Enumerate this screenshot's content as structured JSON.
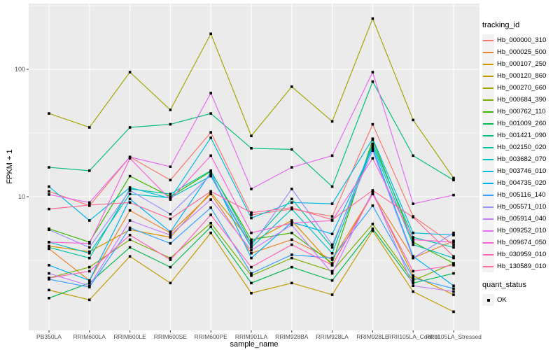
{
  "figure": {
    "background": "#FFFFFF",
    "panel_background": "#EBEBEB",
    "grid_color": "#FFFFFF",
    "tick_label_color": "#4D4D4D",
    "tick_mark_color": "#333333",
    "marker_color": "#000000"
  },
  "legend": {
    "tracking_id_title": "tracking_id",
    "quant_status_title": "quant_status",
    "quant_status_items": [
      {
        "label": "OK",
        "shape": "filled-square",
        "color": "#000000"
      }
    ]
  },
  "chart_data": {
    "type": "line",
    "title": "",
    "xlabel": "sample_name",
    "ylabel": "FPKM + 1",
    "y_scale": "log10",
    "ylim": [
      0.85,
      310
    ],
    "y_major_ticks": [
      10,
      100
    ],
    "y_tick_labels": [
      "10",
      "100"
    ],
    "y_minor_gridlines": [
      3.162,
      31.62,
      316
    ],
    "grid": true,
    "legend_position": "right",
    "marker": "filled-square-black",
    "categories": [
      "PB350LA",
      "RRIM600LA",
      "RRIM600LE",
      "RRIM600SE",
      "RRIM600PE",
      "RRIM901LA",
      "RRIM928BA",
      "RRIM928LA",
      "RRIM928LE",
      "RRII105LA_Control",
      "RRII105LA_Stressed"
    ],
    "series": [
      {
        "name": "Hb_000000_310",
        "color": "#F8766D",
        "values": [
          11,
          8.5,
          20.5,
          13.5,
          32,
          7.2,
          8,
          7,
          37,
          7,
          4.2
        ]
      },
      {
        "name": "Hb_000025_500",
        "color": "#EA8331",
        "values": [
          3.9,
          2.2,
          7.8,
          5.2,
          10.5,
          3.6,
          4.6,
          3.2,
          10.5,
          3.3,
          4.5
        ]
      },
      {
        "name": "Hb_000107_250",
        "color": "#D89000",
        "values": [
          4.1,
          3.7,
          5.5,
          4.8,
          10.8,
          4.4,
          6.5,
          2.9,
          10.8,
          2.4,
          1.7
        ]
      },
      {
        "name": "Hb_000120_860",
        "color": "#C09B00",
        "values": [
          1.85,
          1.55,
          3.4,
          2.1,
          5.2,
          1.75,
          2.1,
          1.7,
          5.4,
          1.8,
          1.25
        ]
      },
      {
        "name": "Hb_000270_660",
        "color": "#A3A500",
        "values": [
          45,
          35,
          95,
          48,
          190,
          30,
          73,
          39,
          250,
          40,
          14
        ]
      },
      {
        "name": "Hb_000684_390",
        "color": "#7CAE00",
        "values": [
          2.3,
          2.8,
          4.6,
          3.3,
          6.2,
          2.4,
          3.3,
          2.6,
          6.1,
          2.2,
          3.0
        ]
      },
      {
        "name": "Hb_000762_110",
        "color": "#39B600",
        "values": [
          5.6,
          4.4,
          14.5,
          10,
          15.8,
          4.6,
          5.2,
          3.0,
          28,
          4.4,
          3.0
        ]
      },
      {
        "name": "Hb_001009_260",
        "color": "#00BB4E",
        "values": [
          1.6,
          2.1,
          4.0,
          2.8,
          5.8,
          2.1,
          2.8,
          2.2,
          5.6,
          2.1,
          2.5
        ]
      },
      {
        "name": "Hb_001421_090",
        "color": "#00BF7D",
        "values": [
          17,
          16,
          35,
          37,
          45,
          24,
          23.5,
          12,
          80,
          21,
          13.5
        ]
      },
      {
        "name": "Hb_002150_020",
        "color": "#00C1A3",
        "values": [
          4.0,
          3.3,
          11.5,
          10.5,
          16,
          4.3,
          9.6,
          4.0,
          26,
          4.8,
          4.0
        ]
      },
      {
        "name": "Hb_003682_070",
        "color": "#00BFC4",
        "values": [
          4.4,
          3.6,
          10.5,
          9.8,
          14.5,
          4.0,
          8.0,
          3.6,
          25,
          4.2,
          3.3
        ]
      },
      {
        "name": "Hb_003746_010",
        "color": "#00BAE0",
        "values": [
          12,
          6.5,
          11.8,
          9.7,
          29,
          6.8,
          9.0,
          8.8,
          28.5,
          5.2,
          5.0
        ]
      },
      {
        "name": "Hb_004735_020",
        "color": "#00B0F6",
        "values": [
          2.9,
          2.2,
          9.6,
          5.3,
          15.5,
          3.3,
          6.3,
          5.1,
          24,
          3.4,
          2.0
        ]
      },
      {
        "name": "Hb_005116_140",
        "color": "#35A2FF",
        "values": [
          2.25,
          1.95,
          5.7,
          4.3,
          8.2,
          2.5,
          3.5,
          3.3,
          8.5,
          2.3,
          1.9
        ]
      },
      {
        "name": "Hb_005571_010",
        "color": "#9590FF",
        "values": [
          5.5,
          4.0,
          11.2,
          7.3,
          14.8,
          4.1,
          11.5,
          4.2,
          23,
          3.3,
          5.2
        ]
      },
      {
        "name": "Hb_005914_040",
        "color": "#C77CFF",
        "values": [
          2.5,
          2.0,
          6.5,
          5.0,
          9.5,
          3.8,
          6.0,
          2.5,
          11,
          2.0,
          1.8
        ]
      },
      {
        "name": "Hb_009252_010",
        "color": "#E76BF3",
        "values": [
          10.4,
          9.0,
          20.5,
          17.2,
          65,
          11.5,
          17,
          21,
          95,
          8.8,
          10.3
        ]
      },
      {
        "name": "Hb_009674_050",
        "color": "#FA62DB",
        "values": [
          4.4,
          4.3,
          20,
          9.5,
          21,
          5.2,
          6.2,
          6.5,
          20,
          4.6,
          4.4
        ]
      },
      {
        "name": "Hb_030959_010",
        "color": "#FF62BC",
        "values": [
          2.3,
          2.6,
          5.0,
          3.2,
          7.2,
          2.8,
          4.2,
          2.9,
          10.5,
          2.6,
          2.9
        ]
      },
      {
        "name": "Hb_130589_010",
        "color": "#FF6A98",
        "values": [
          8.0,
          8.6,
          9.0,
          6.7,
          11.0,
          7.5,
          8.2,
          6.6,
          11.2,
          6.9,
          3.4
        ]
      }
    ]
  }
}
